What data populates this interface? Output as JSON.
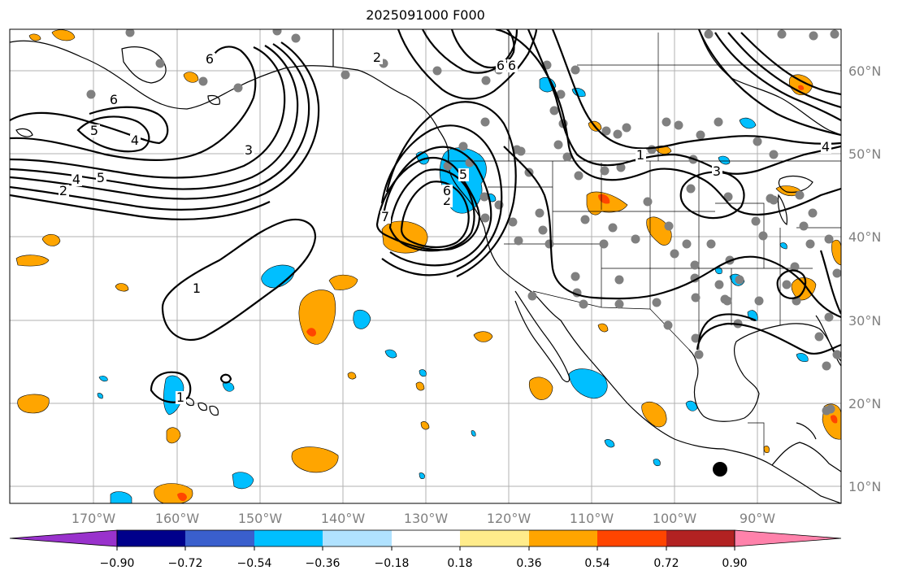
{
  "map": {
    "title": "2025091000 F000",
    "lon_labels": [
      "170°W",
      "160°W",
      "150°W",
      "140°W",
      "130°W",
      "120°W",
      "110°W",
      "100°W",
      "90°W"
    ],
    "lat_labels": [
      "60°N",
      "50°N",
      "40°N",
      "30°N",
      "20°N",
      "10°N"
    ],
    "contour_labels": [
      "1",
      "1",
      "2",
      "2",
      "2",
      "3",
      "3",
      "4",
      "4",
      "4",
      "5",
      "5",
      "5",
      "6",
      "6",
      "6",
      "6",
      "6",
      "7",
      "1"
    ],
    "colors": {
      "fill_orange": "#ffa500",
      "fill_red": "#ff4500",
      "fill_cyan": "#00bfff",
      "station_gray": "#808080",
      "coast": "#000000",
      "grid": "#b0b0b0"
    }
  },
  "colorbar": {
    "ticks": [
      "−0.90",
      "−0.72",
      "−0.54",
      "−0.36",
      "−0.18",
      "0.18",
      "0.36",
      "0.54",
      "0.72",
      "0.90"
    ],
    "colors": [
      "#9932cc",
      "#00008b",
      "#3a5fcd",
      "#00bfff",
      "#b0e2ff",
      "#ffffff",
      "#ffec8b",
      "#ffa500",
      "#ff4500",
      "#b22222",
      "#ff82ab"
    ]
  }
}
